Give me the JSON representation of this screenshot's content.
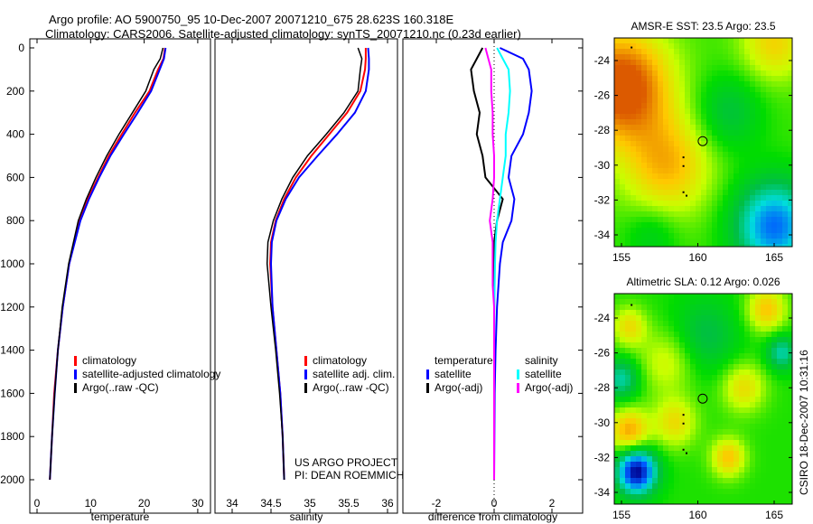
{
  "titles": {
    "line1": "Argo profile: AO 5900750_95 10-Dec-2007 20071210_675 28.623S 160.318E",
    "line2": "Climatology: CARS2006. Satellite-adjusted climatology: synTS_20071210.nc (0.23d earlier)"
  },
  "footer": {
    "project": "US ARGO PROJECT",
    "pi": "PI: DEAN ROEMMICH",
    "stamp": "CSIRO 18-Dec-2007 10:31:16"
  },
  "colors": {
    "climatology": "#ff0000",
    "satellite": "#0000ff",
    "argo": "#000000",
    "sal_satellite": "#00ffff",
    "sal_argo": "#ff00ff"
  },
  "chart_data": [
    {
      "type": "line",
      "xlabel": "temperature",
      "ylabel": "",
      "xlim": [
        -2,
        32
      ],
      "ylim": [
        2050,
        0
      ],
      "xticks": [
        "0",
        "10",
        "20",
        "30"
      ],
      "yticks": [
        "0",
        "200",
        "400",
        "600",
        "800",
        "1000",
        "1200",
        "1400",
        "1600",
        "1800",
        "2000"
      ],
      "legend": [
        "climatology",
        "satellite-adjusted climatology",
        "Argo(..raw -QC)"
      ],
      "depth": [
        0,
        50,
        100,
        200,
        300,
        400,
        500,
        600,
        700,
        800,
        1000,
        1200,
        1400,
        1600,
        1800,
        2000
      ],
      "series": [
        {
          "name": "climatology",
          "values": [
            23.9,
            23.6,
            22.6,
            21.0,
            18.3,
            15.8,
            13.4,
            11.4,
            9.5,
            8.0,
            6.0,
            4.8,
            3.9,
            3.2,
            2.8,
            2.4
          ]
        },
        {
          "name": "satellite-adjusted climatology",
          "values": [
            24.0,
            23.7,
            22.9,
            21.3,
            18.8,
            16.2,
            13.7,
            11.6,
            9.7,
            8.1,
            6.0,
            4.8,
            3.9,
            3.3,
            2.8,
            2.4
          ]
        },
        {
          "name": "Argo(..raw -QC)",
          "values": [
            23.5,
            23.0,
            21.8,
            20.3,
            17.8,
            15.3,
            13.0,
            11.0,
            9.2,
            7.7,
            5.9,
            4.7,
            3.9,
            3.3,
            2.8,
            2.4
          ]
        }
      ]
    },
    {
      "type": "line",
      "xlabel": "salinity",
      "ylabel": "",
      "xlim": [
        33.8,
        36.1
      ],
      "ylim": [
        2050,
        0
      ],
      "xticks": [
        "34",
        "34.5",
        "35",
        "35.5",
        "36"
      ],
      "legend": [
        "climatology",
        "satellite adj. clim.",
        "Argo(..raw -QC)"
      ],
      "depth": [
        0,
        50,
        100,
        200,
        300,
        400,
        500,
        600,
        700,
        800,
        900,
        1000,
        1200,
        1400,
        1600,
        1800,
        2000
      ],
      "series": [
        {
          "name": "climatology",
          "values": [
            35.72,
            35.72,
            35.71,
            35.65,
            35.48,
            35.25,
            35.02,
            34.82,
            34.67,
            34.56,
            34.5,
            34.49,
            34.52,
            34.57,
            34.62,
            34.65,
            34.67
          ]
        },
        {
          "name": "satellite adj. clim.",
          "values": [
            35.75,
            35.76,
            35.76,
            35.72,
            35.58,
            35.35,
            35.1,
            34.86,
            34.69,
            34.57,
            34.51,
            34.5,
            34.52,
            34.57,
            34.62,
            34.65,
            34.67
          ]
        },
        {
          "name": "Argo(..raw -QC)",
          "values": [
            35.62,
            35.67,
            35.65,
            35.62,
            35.44,
            35.21,
            34.97,
            34.78,
            34.64,
            34.53,
            34.46,
            34.45,
            34.5,
            34.56,
            34.61,
            34.65,
            34.67
          ]
        }
      ]
    },
    {
      "type": "line",
      "xlabel": "difference from climatology",
      "ylabel": "",
      "xlim": [
        -3,
        3
      ],
      "ylim": [
        2050,
        0
      ],
      "xticks": [
        "-2",
        "0",
        "2"
      ],
      "legend_headers": [
        "temperature",
        "salinity"
      ],
      "legend": [
        "satellite",
        "Argo(-adj)",
        "satellite",
        "Argo(-adj)"
      ],
      "depth": [
        0,
        50,
        100,
        200,
        300,
        400,
        500,
        600,
        700,
        800,
        900,
        1000,
        1100,
        1200,
        1400,
        1600,
        1800,
        2000
      ],
      "series": [
        {
          "name": "temperature satellite",
          "values": [
            0.2,
            1.0,
            1.2,
            1.3,
            1.2,
            1.0,
            0.6,
            0.5,
            0.7,
            0.6,
            0.3,
            0.2,
            0.15,
            0.1,
            0.05,
            0.02,
            0.01,
            0.0
          ]
        },
        {
          "name": "temperature Argo(-adj)",
          "values": [
            -0.4,
            -0.6,
            -0.8,
            -0.7,
            -0.5,
            -0.6,
            -0.4,
            -0.3,
            0.3,
            0.1,
            0.0,
            0.0,
            0.0,
            0.0,
            0.0,
            0.0,
            0.0,
            0.0
          ]
        },
        {
          "name": "salinity satellite",
          "values": [
            0.1,
            0.3,
            0.5,
            0.55,
            0.5,
            0.4,
            0.4,
            0.3,
            0.2,
            0.1,
            0.05,
            0.03,
            0.02,
            0.01,
            0.0,
            0.0,
            0.0,
            0.0
          ]
        },
        {
          "name": "salinity Argo(-adj)",
          "values": [
            -0.3,
            -0.2,
            -0.1,
            -0.1,
            -0.05,
            -0.05,
            0.0,
            0.0,
            -0.05,
            -0.15,
            -0.05,
            -0.05,
            -0.05,
            0.0,
            0.0,
            0.0,
            0.0,
            0.0
          ]
        }
      ]
    },
    {
      "type": "heatmap",
      "title": "AMSR-E SST: 23.5 Argo: 23.5",
      "xticks": [
        "155",
        "160",
        "165"
      ],
      "yticks": [
        "-24",
        "-26",
        "-28",
        "-30",
        "-32",
        "-34"
      ],
      "float_position": [
        160.318,
        -28.623
      ]
    },
    {
      "type": "heatmap",
      "title": "Altimetric SLA: 0.12 Argo: 0.026",
      "xticks": [
        "155",
        "160",
        "165"
      ],
      "yticks": [
        "-24",
        "-26",
        "-28",
        "-30",
        "-32",
        "-34"
      ],
      "float_position": [
        160.318,
        -28.623
      ]
    }
  ]
}
